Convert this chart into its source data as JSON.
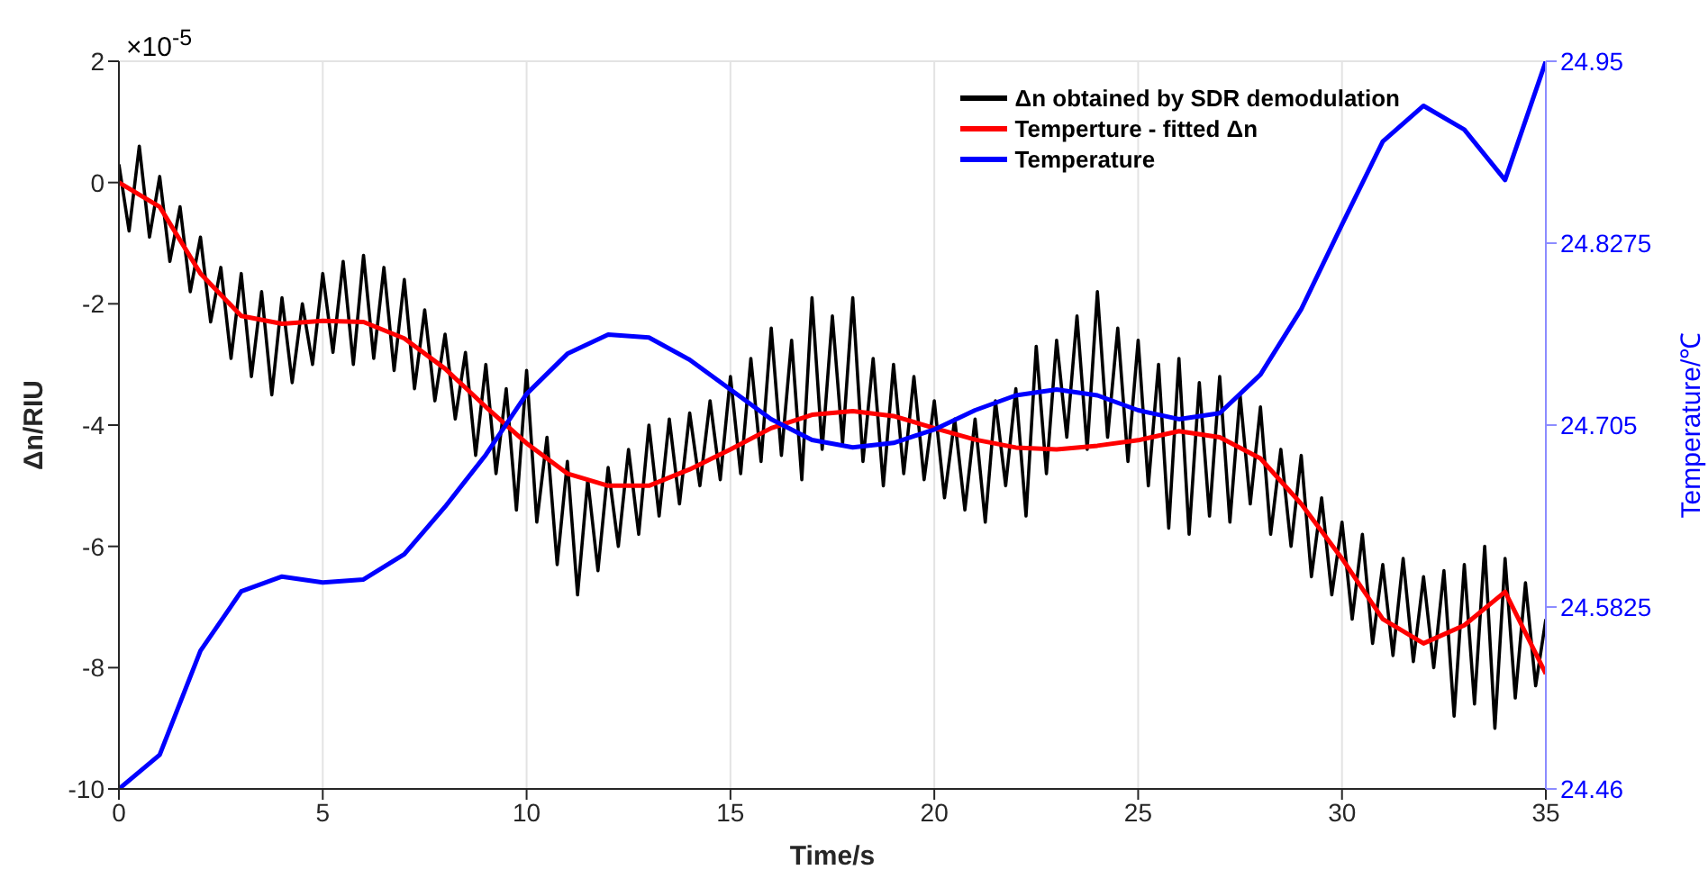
{
  "chart_data": {
    "type": "line",
    "xlabel": "Time/s",
    "ylabel": "Δn/RIU",
    "y2label": "Temperature/℃",
    "annotations": [
      "×10$^{-5}$"
    ],
    "xlim": [
      0,
      35
    ],
    "xticks": [
      0,
      5,
      10,
      15,
      20,
      25,
      30,
      35
    ],
    "ylim": [
      -10,
      2
    ],
    "yticks": [
      -10,
      -8,
      -6,
      -4,
      -2,
      0,
      2
    ],
    "y2lim": [
      24.46,
      24.95
    ],
    "y2ticks": [
      24.46,
      24.5825,
      24.705,
      24.8275,
      24.95
    ],
    "grid": true,
    "legend": "top right",
    "line_style": "solid",
    "marker": "none",
    "series": [
      {
        "name": "Δn obtained by SDR demodulation",
        "color": "#000000",
        "x": [
          0,
          0.25,
          0.5,
          0.75,
          1,
          1.25,
          1.5,
          1.75,
          2,
          2.25,
          2.5,
          2.75,
          3,
          3.25,
          3.5,
          3.75,
          4,
          4.25,
          4.5,
          4.75,
          5,
          5.25,
          5.5,
          5.75,
          6,
          6.25,
          6.5,
          6.75,
          7,
          7.25,
          7.5,
          7.75,
          8,
          8.25,
          8.5,
          8.75,
          9,
          9.25,
          9.5,
          9.75,
          10,
          10.25,
          10.5,
          10.75,
          11,
          11.25,
          11.5,
          11.75,
          12,
          12.25,
          12.5,
          12.75,
          13,
          13.25,
          13.5,
          13.75,
          14,
          14.25,
          14.5,
          14.75,
          15,
          15.25,
          15.5,
          15.75,
          16,
          16.25,
          16.5,
          16.75,
          17,
          17.25,
          17.5,
          17.75,
          18,
          18.25,
          18.5,
          18.75,
          19,
          19.25,
          19.5,
          19.75,
          20,
          20.25,
          20.5,
          20.75,
          21,
          21.25,
          21.5,
          21.75,
          22,
          22.25,
          22.5,
          22.75,
          23,
          23.25,
          23.5,
          23.75,
          24,
          24.25,
          24.5,
          24.75,
          25,
          25.25,
          25.5,
          25.75,
          26,
          26.25,
          26.5,
          26.75,
          27,
          27.25,
          27.5,
          27.75,
          28,
          28.25,
          28.5,
          28.75,
          29,
          29.25,
          29.5,
          29.75,
          30,
          30.25,
          30.5,
          30.75,
          31,
          31.25,
          31.5,
          31.75,
          32,
          32.25,
          32.5,
          32.75,
          33,
          33.25,
          33.5,
          33.75,
          34,
          34.25,
          34.5,
          34.75,
          35
        ],
        "values": [
          0.3,
          -0.8,
          0.6,
          -0.9,
          0.1,
          -1.3,
          -0.4,
          -1.8,
          -0.9,
          -2.3,
          -1.4,
          -2.9,
          -1.5,
          -3.2,
          -1.8,
          -3.5,
          -1.9,
          -3.3,
          -2.0,
          -3.0,
          -1.5,
          -2.8,
          -1.3,
          -3.0,
          -1.2,
          -2.9,
          -1.4,
          -3.1,
          -1.6,
          -3.4,
          -2.1,
          -3.6,
          -2.5,
          -3.9,
          -2.8,
          -4.5,
          -3.0,
          -4.8,
          -3.4,
          -5.4,
          -3.1,
          -5.6,
          -4.2,
          -6.3,
          -4.6,
          -6.8,
          -4.9,
          -6.4,
          -4.7,
          -6.0,
          -4.4,
          -5.8,
          -4.0,
          -5.5,
          -3.9,
          -5.3,
          -3.8,
          -5.0,
          -3.6,
          -4.9,
          -3.2,
          -4.8,
          -2.9,
          -4.6,
          -2.4,
          -4.5,
          -2.6,
          -4.9,
          -1.9,
          -4.4,
          -2.2,
          -4.3,
          -1.9,
          -4.6,
          -2.9,
          -5.0,
          -3.0,
          -4.8,
          -3.2,
          -4.9,
          -3.6,
          -5.2,
          -3.9,
          -5.4,
          -3.9,
          -5.6,
          -3.6,
          -5.0,
          -3.4,
          -5.5,
          -2.7,
          -4.8,
          -2.6,
          -4.2,
          -2.2,
          -4.4,
          -1.8,
          -4.2,
          -2.4,
          -4.6,
          -2.6,
          -5.0,
          -3.0,
          -5.7,
          -2.9,
          -5.8,
          -3.3,
          -5.5,
          -3.2,
          -5.6,
          -3.5,
          -5.3,
          -3.7,
          -5.8,
          -4.4,
          -6.0,
          -4.5,
          -6.5,
          -5.2,
          -6.8,
          -5.6,
          -7.2,
          -5.8,
          -7.6,
          -6.3,
          -7.8,
          -6.2,
          -7.9,
          -6.5,
          -8.0,
          -6.4,
          -8.8,
          -6.3,
          -8.6,
          -6.0,
          -9.0,
          -6.2,
          -8.5,
          -6.6,
          -8.3,
          -7.2
        ]
      },
      {
        "name": "Temperture - fitted Δn",
        "color": "#ff0000",
        "x": [
          0,
          1,
          2,
          3,
          4,
          5,
          6,
          7,
          8,
          9,
          10,
          11,
          12,
          13,
          14,
          15,
          16,
          17,
          18,
          19,
          20,
          21,
          22,
          23,
          24,
          25,
          26,
          27,
          28,
          29,
          30,
          31,
          32,
          33,
          34,
          35
        ],
        "values": [
          0,
          -0.4,
          -1.5,
          -2.2,
          -2.33,
          -2.28,
          -2.3,
          -2.57,
          -3.07,
          -3.7,
          -4.3,
          -4.8,
          -5.0,
          -5.0,
          -4.73,
          -4.4,
          -4.05,
          -3.83,
          -3.77,
          -3.85,
          -4.05,
          -4.24,
          -4.37,
          -4.4,
          -4.34,
          -4.25,
          -4.1,
          -4.2,
          -4.55,
          -5.3,
          -6.2,
          -7.2,
          -7.6,
          -7.3,
          -6.75,
          -8.1
        ]
      },
      {
        "name": "Temperature",
        "color": "#0000ff",
        "axis": "y2",
        "x": [
          0,
          1,
          2,
          3,
          4,
          5,
          6,
          7,
          8,
          9,
          10,
          11,
          12,
          13,
          14,
          15,
          16,
          17,
          18,
          19,
          20,
          21,
          22,
          23,
          24,
          25,
          26,
          27,
          28,
          29,
          30,
          31,
          32,
          33,
          34,
          35
        ],
        "values": [
          24.46,
          24.483,
          24.553,
          24.593,
          24.603,
          24.599,
          24.601,
          24.618,
          24.65,
          24.685,
          24.726,
          24.753,
          24.766,
          24.764,
          24.749,
          24.729,
          24.709,
          24.695,
          24.69,
          24.693,
          24.702,
          24.715,
          24.725,
          24.729,
          24.725,
          24.715,
          24.709,
          24.713,
          24.739,
          24.783,
          24.84,
          24.896,
          24.92,
          24.904,
          24.87,
          24.95
        ]
      }
    ]
  }
}
